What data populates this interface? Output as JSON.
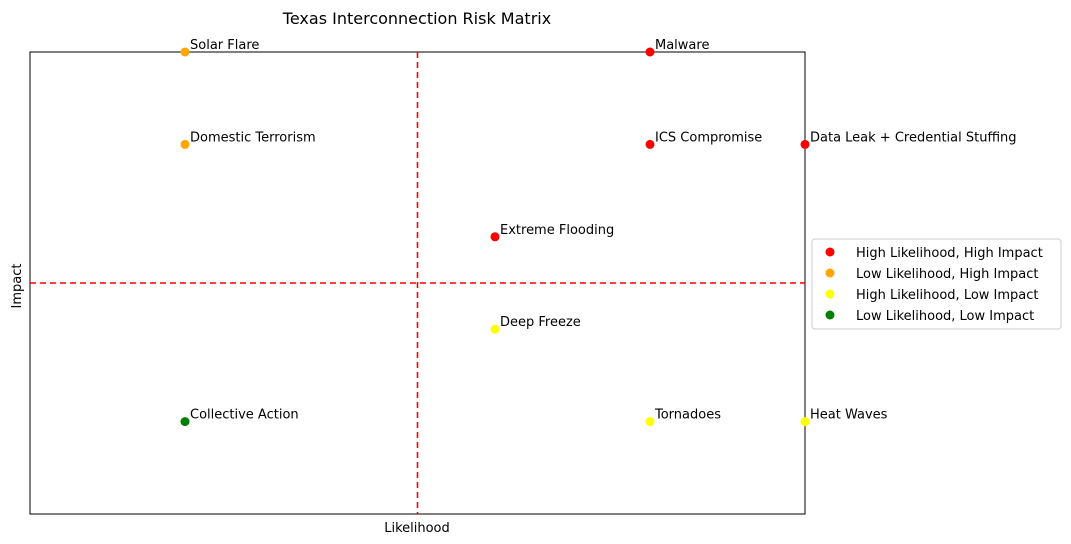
{
  "chart_data": {
    "type": "scatter",
    "title": "Texas Interconnection Risk Matrix",
    "xlabel": "Likelihood",
    "ylabel": "Impact",
    "xlim": [
      0,
      5
    ],
    "ylim": [
      0,
      5
    ],
    "x_ticks_visible": false,
    "y_ticks_visible": false,
    "grid": false,
    "reference_lines": {
      "vertical_x": 2.5,
      "horizontal_y": 2.5,
      "color": "#ff0000",
      "style": "dashed"
    },
    "legend_position": "center-right-outside",
    "categories": [
      {
        "name": "High Likelihood, High Impact",
        "color": "#ff0000"
      },
      {
        "name": "Low Likelihood, High Impact",
        "color": "#ffa500"
      },
      {
        "name": "High Likelihood, Low Impact",
        "color": "#ffff00"
      },
      {
        "name": "Low Likelihood, Low Impact",
        "color": "#008000"
      }
    ],
    "points": [
      {
        "label": "Solar Flare",
        "x": 1.0,
        "y": 5.0,
        "category": 1
      },
      {
        "label": "Malware",
        "x": 4.0,
        "y": 5.0,
        "category": 0
      },
      {
        "label": "Domestic Terrorism",
        "x": 1.0,
        "y": 4.0,
        "category": 1
      },
      {
        "label": "ICS Compromise",
        "x": 4.0,
        "y": 4.0,
        "category": 0
      },
      {
        "label": "Data Leak + Credential Stuffing",
        "x": 5.0,
        "y": 4.0,
        "category": 0
      },
      {
        "label": "Extreme Flooding",
        "x": 3.0,
        "y": 3.0,
        "category": 0
      },
      {
        "label": "Deep Freeze",
        "x": 3.0,
        "y": 2.0,
        "category": 2
      },
      {
        "label": "Collective Action",
        "x": 1.0,
        "y": 1.0,
        "category": 3
      },
      {
        "label": "Tornadoes",
        "x": 4.0,
        "y": 1.0,
        "category": 2
      },
      {
        "label": "Heat Waves",
        "x": 5.0,
        "y": 1.0,
        "category": 2
      }
    ]
  }
}
